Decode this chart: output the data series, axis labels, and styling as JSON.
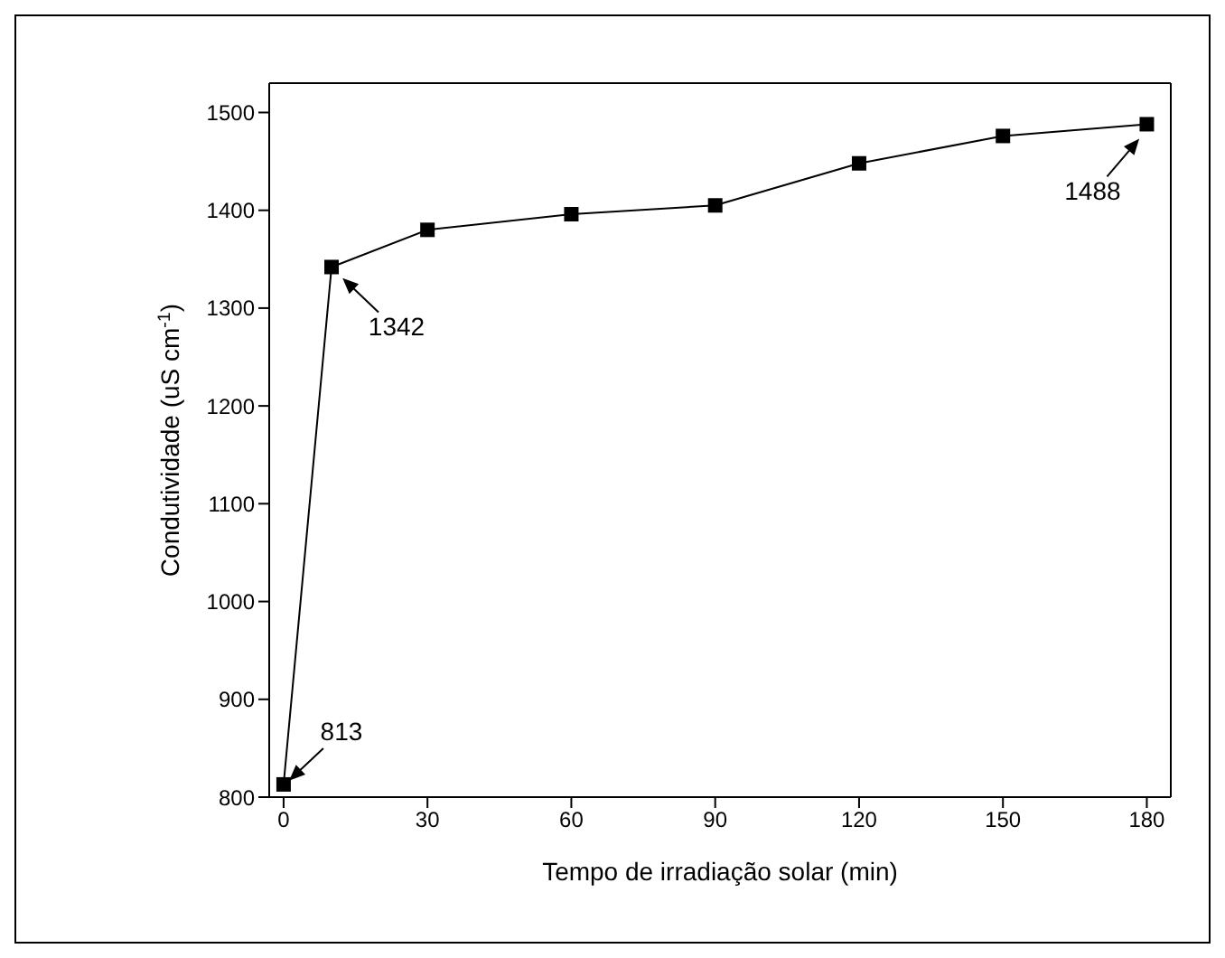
{
  "chart_data": {
    "type": "line",
    "xlabel": "Tempo de irradiação solar (min)",
    "ylabel": "Condutividade (uS cm$^{-1}$)",
    "x": [
      0,
      10,
      30,
      60,
      90,
      120,
      150,
      180
    ],
    "series": [
      {
        "color": "#000000",
        "values": [
          813,
          1342,
          1380,
          1396,
          1405,
          1448,
          1476,
          1488
        ]
      }
    ],
    "xlim": [
      -3,
      185
    ],
    "xticks": [
      0,
      30,
      60,
      90,
      120,
      150,
      180
    ],
    "ylim": [
      800,
      1530
    ],
    "yticks": [
      800,
      900,
      1000,
      1100,
      1200,
      1300,
      1400,
      1500
    ],
    "marker": "square",
    "line_style": "solid",
    "grid": false,
    "legend": false,
    "annotations": [
      {
        "text": "813",
        "x": 0,
        "y": 813
      },
      {
        "text": "1342",
        "x": 10,
        "y": 1342
      },
      {
        "text": "1488",
        "x": 180,
        "y": 1488
      }
    ]
  }
}
